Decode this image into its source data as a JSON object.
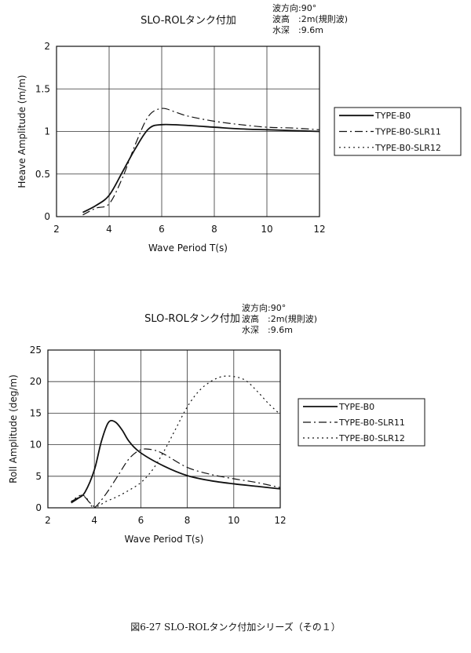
{
  "caption": "図6-27 SLO-ROLタンク付加シリーズ（その１）",
  "chart_data": [
    {
      "type": "line",
      "title": "SLO-ROLタンク付加",
      "conditions": [
        "波方向:90°",
        "波高　:2m(規則波)",
        "水深　:9.6m"
      ],
      "xlabel": "Wave Period  T(s)",
      "ylabel": "Heave Amplitude (m/m)",
      "xlim": [
        2,
        12
      ],
      "ylim": [
        0,
        2
      ],
      "xticks": [
        "2",
        "4",
        "6",
        "8",
        "10",
        "12"
      ],
      "yticks": [
        "0",
        "0.5",
        "1",
        "1.5",
        "2"
      ],
      "grid": true,
      "legend_position": "right",
      "series": [
        {
          "name": "TYPE-B0",
          "dash": "solid",
          "x": [
            3,
            3.5,
            4,
            4.5,
            5,
            5.5,
            6,
            7,
            8,
            9,
            10,
            11,
            12
          ],
          "y": [
            0.05,
            0.13,
            0.25,
            0.52,
            0.8,
            1.03,
            1.08,
            1.07,
            1.05,
            1.03,
            1.02,
            1.01,
            1.0
          ]
        },
        {
          "name": "TYPE-B0-SLR11",
          "dash": "dashdot",
          "x": [
            3,
            3.5,
            4,
            4.5,
            5,
            5.5,
            6,
            6.5,
            7,
            8,
            9,
            10,
            11,
            12
          ],
          "y": [
            0.02,
            0.1,
            0.15,
            0.45,
            0.85,
            1.18,
            1.27,
            1.23,
            1.18,
            1.12,
            1.08,
            1.05,
            1.04,
            1.02
          ]
        },
        {
          "name": "TYPE-B0-SLR12",
          "dash": "dotted",
          "x": [
            3,
            3.5,
            4,
            4.5,
            5,
            5.5,
            6,
            7,
            8,
            9,
            10,
            11,
            12
          ],
          "y": [
            0.05,
            0.13,
            0.25,
            0.52,
            0.8,
            1.03,
            1.08,
            1.07,
            1.05,
            1.03,
            1.02,
            1.01,
            1.0
          ]
        }
      ]
    },
    {
      "type": "line",
      "title": "SLO-ROLタンク付加",
      "conditions": [
        "波方向:90°",
        "波高　:2m(規則波)",
        "水深　:9.6m"
      ],
      "xlabel": "Wave Period  T(s)",
      "ylabel": "Roll Amplitude (deg/m)",
      "xlim": [
        2,
        12
      ],
      "ylim": [
        0,
        25
      ],
      "xticks": [
        "2",
        "4",
        "6",
        "8",
        "10",
        "12"
      ],
      "yticks": [
        "0",
        "5",
        "10",
        "15",
        "20",
        "25"
      ],
      "grid": true,
      "legend_position": "right",
      "series": [
        {
          "name": "TYPE-B0",
          "dash": "solid",
          "x": [
            3,
            3.3,
            3.6,
            4,
            4.3,
            4.6,
            4.9,
            5.2,
            5.5,
            6,
            7,
            8,
            9,
            10,
            11,
            12
          ],
          "y": [
            0.8,
            1.5,
            2.5,
            6.0,
            10.5,
            13.5,
            13.6,
            12.3,
            10.5,
            8.7,
            6.6,
            5.1,
            4.3,
            3.8,
            3.4,
            3.0
          ]
        },
        {
          "name": "TYPE-B0-SLR11",
          "dash": "dashdot",
          "x": [
            3,
            3.3,
            3.5,
            3.8,
            4,
            4.5,
            5,
            5.5,
            6,
            6.5,
            7,
            8,
            9,
            10,
            11,
            12
          ],
          "y": [
            1.0,
            1.6,
            2.0,
            0.8,
            0.0,
            2.2,
            5.0,
            7.8,
            9.2,
            9.2,
            8.5,
            6.4,
            5.3,
            4.6,
            4.0,
            3.2
          ]
        },
        {
          "name": "TYPE-B0-SLR12",
          "dash": "dotted",
          "x": [
            3,
            3.5,
            4,
            4.5,
            5,
            5.5,
            6,
            6.5,
            7,
            7.5,
            8,
            8.5,
            9,
            9.5,
            10,
            10.5,
            11,
            11.5,
            12
          ],
          "y": [
            1.0,
            2.0,
            0.2,
            1.0,
            1.8,
            2.8,
            4.0,
            6.0,
            9.0,
            12.5,
            16.0,
            18.5,
            20.0,
            20.8,
            20.8,
            20.2,
            18.5,
            16.5,
            14.8
          ]
        }
      ]
    }
  ]
}
